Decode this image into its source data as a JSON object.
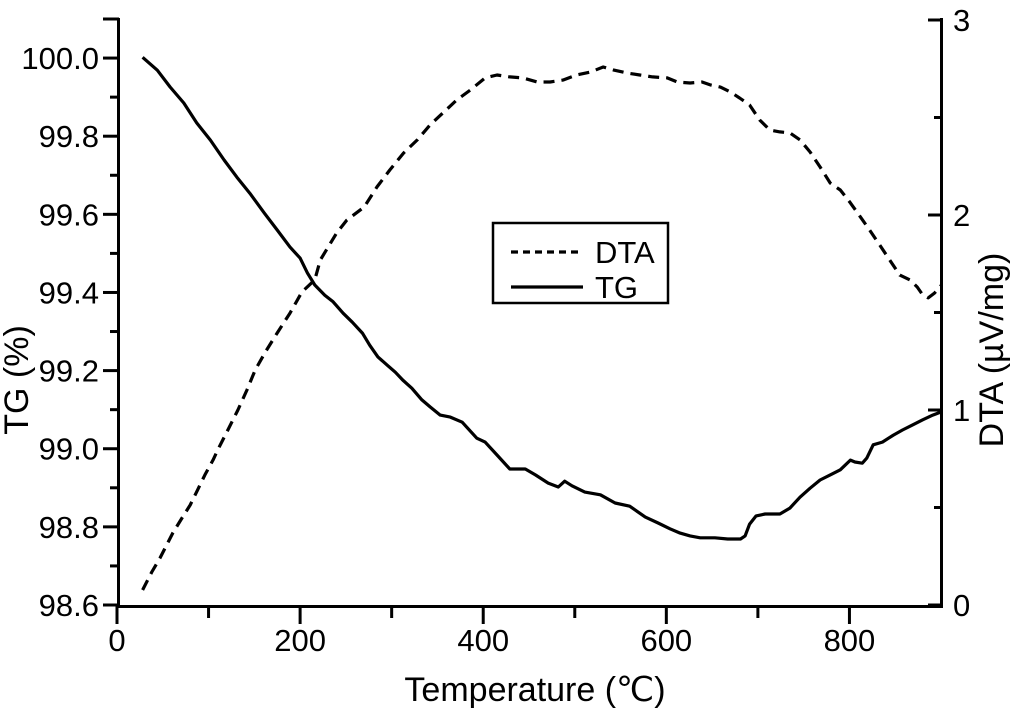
{
  "chart_data": {
    "type": "line",
    "title": "",
    "background_color": "#ffffff",
    "line_color": "#000000",
    "x_axis": {
      "label": "Temperature (℃)",
      "range": [
        0,
        900
      ],
      "major_ticks": [
        {
          "v": 0,
          "t": "0"
        },
        {
          "v": 200,
          "t": "200"
        },
        {
          "v": 400,
          "t": "400"
        },
        {
          "v": 600,
          "t": "600"
        },
        {
          "v": 800,
          "t": "800"
        }
      ],
      "minor_ticks": [
        100,
        300,
        500,
        700
      ]
    },
    "left_axis": {
      "label": "TG (%)",
      "range": [
        98.6,
        100.1
      ],
      "major_ticks": [
        {
          "v": 98.6,
          "t": "98.6"
        },
        {
          "v": 98.8,
          "t": "98.8"
        },
        {
          "v": 99.0,
          "t": "99.0"
        },
        {
          "v": 99.2,
          "t": "99.2"
        },
        {
          "v": 99.4,
          "t": "99.4"
        },
        {
          "v": 99.6,
          "t": "99.6"
        },
        {
          "v": 99.8,
          "t": "99.8"
        },
        {
          "v": 100.0,
          "t": "100.0"
        },
        {
          "v": 100.1,
          "t": ""
        }
      ],
      "minor_ticks": [
        98.7,
        98.9,
        99.1,
        99.3,
        99.5,
        99.7,
        99.9
      ]
    },
    "right_axis": {
      "label": "DTA (µV/mg)",
      "range": [
        0,
        3
      ],
      "major_ticks": [
        {
          "v": 0,
          "t": "0"
        },
        {
          "v": 1,
          "t": "1"
        },
        {
          "v": 2,
          "t": "2"
        },
        {
          "v": 3,
          "t": "3"
        }
      ],
      "minor_ticks": [
        0.5,
        1.5,
        2.5
      ]
    },
    "legend": {
      "entries": [
        {
          "label": "DTA",
          "line_style": "dashed"
        },
        {
          "label": "TG",
          "line_style": "solid"
        }
      ]
    },
    "series": [
      {
        "name": "DTA",
        "axis": "right",
        "line_style": "dashed",
        "color": "#000000",
        "points": [
          [
            28,
            0.077
          ],
          [
            38,
            0.169
          ],
          [
            47,
            0.241
          ],
          [
            61,
            0.369
          ],
          [
            71,
            0.446
          ],
          [
            80,
            0.513
          ],
          [
            88,
            0.59
          ],
          [
            96,
            0.667
          ],
          [
            105,
            0.744
          ],
          [
            110,
            0.795
          ],
          [
            121,
            0.897
          ],
          [
            132,
            1.0
          ],
          [
            142,
            1.103
          ],
          [
            151,
            1.205
          ],
          [
            162,
            1.297
          ],
          [
            175,
            1.395
          ],
          [
            189,
            1.497
          ],
          [
            202,
            1.605
          ],
          [
            216,
            1.667
          ],
          [
            222,
            1.769
          ],
          [
            240,
            1.908
          ],
          [
            251,
            1.974
          ],
          [
            270,
            2.041
          ],
          [
            284,
            2.144
          ],
          [
            298,
            2.231
          ],
          [
            313,
            2.318
          ],
          [
            328,
            2.385
          ],
          [
            342,
            2.462
          ],
          [
            357,
            2.528
          ],
          [
            371,
            2.59
          ],
          [
            386,
            2.641
          ],
          [
            402,
            2.703
          ],
          [
            415,
            2.718
          ],
          [
            429,
            2.708
          ],
          [
            443,
            2.703
          ],
          [
            459,
            2.682
          ],
          [
            473,
            2.682
          ],
          [
            487,
            2.692
          ],
          [
            502,
            2.718
          ],
          [
            517,
            2.733
          ],
          [
            531,
            2.759
          ],
          [
            542,
            2.744
          ],
          [
            557,
            2.728
          ],
          [
            571,
            2.718
          ],
          [
            585,
            2.708
          ],
          [
            601,
            2.703
          ],
          [
            612,
            2.682
          ],
          [
            626,
            2.677
          ],
          [
            639,
            2.682
          ],
          [
            648,
            2.667
          ],
          [
            659,
            2.656
          ],
          [
            670,
            2.631
          ],
          [
            680,
            2.6
          ],
          [
            691,
            2.564
          ],
          [
            702,
            2.487
          ],
          [
            713,
            2.436
          ],
          [
            724,
            2.426
          ],
          [
            735,
            2.421
          ],
          [
            746,
            2.385
          ],
          [
            757,
            2.323
          ],
          [
            768,
            2.246
          ],
          [
            779,
            2.164
          ],
          [
            790,
            2.128
          ],
          [
            801,
            2.062
          ],
          [
            812,
            1.99
          ],
          [
            822,
            1.923
          ],
          [
            833,
            1.846
          ],
          [
            844,
            1.769
          ],
          [
            855,
            1.692
          ],
          [
            866,
            1.667
          ],
          [
            874,
            1.631
          ],
          [
            880,
            1.59
          ],
          [
            886,
            1.575
          ],
          [
            893,
            1.6
          ],
          [
            900,
            1.638
          ]
        ]
      },
      {
        "name": "TG",
        "axis": "left",
        "line_style": "solid",
        "color": "#000000",
        "points": [
          [
            28,
            100.002
          ],
          [
            44,
            99.969
          ],
          [
            58,
            99.926
          ],
          [
            73,
            99.885
          ],
          [
            87,
            99.834
          ],
          [
            102,
            99.79
          ],
          [
            117,
            99.739
          ],
          [
            131,
            99.695
          ],
          [
            145,
            99.654
          ],
          [
            161,
            99.603
          ],
          [
            175,
            99.56
          ],
          [
            189,
            99.516
          ],
          [
            200,
            99.488
          ],
          [
            208,
            99.45
          ],
          [
            216,
            99.419
          ],
          [
            227,
            99.393
          ],
          [
            236,
            99.376
          ],
          [
            247,
            99.347
          ],
          [
            257,
            99.324
          ],
          [
            268,
            99.296
          ],
          [
            276,
            99.265
          ],
          [
            285,
            99.235
          ],
          [
            295,
            99.214
          ],
          [
            304,
            99.196
          ],
          [
            312,
            99.176
          ],
          [
            322,
            99.155
          ],
          [
            333,
            99.125
          ],
          [
            342,
            99.107
          ],
          [
            353,
            99.086
          ],
          [
            364,
            99.081
          ],
          [
            377,
            99.068
          ],
          [
            393,
            99.027
          ],
          [
            402,
            99.017
          ],
          [
            415,
            98.984
          ],
          [
            429,
            98.948
          ],
          [
            446,
            98.948
          ],
          [
            457,
            98.933
          ],
          [
            471,
            98.912
          ],
          [
            482,
            98.902
          ],
          [
            489,
            98.917
          ],
          [
            497,
            98.905
          ],
          [
            511,
            98.889
          ],
          [
            528,
            98.882
          ],
          [
            544,
            98.861
          ],
          [
            560,
            98.853
          ],
          [
            577,
            98.825
          ],
          [
            591,
            98.81
          ],
          [
            604,
            98.795
          ],
          [
            615,
            98.784
          ],
          [
            626,
            98.777
          ],
          [
            637,
            98.772
          ],
          [
            653,
            98.772
          ],
          [
            667,
            98.769
          ],
          [
            681,
            98.769
          ],
          [
            686,
            98.777
          ],
          [
            691,
            98.807
          ],
          [
            698,
            98.828
          ],
          [
            708,
            98.833
          ],
          [
            724,
            98.833
          ],
          [
            735,
            98.848
          ],
          [
            746,
            98.876
          ],
          [
            757,
            98.899
          ],
          [
            768,
            98.92
          ],
          [
            779,
            98.933
          ],
          [
            790,
            98.946
          ],
          [
            801,
            98.971
          ],
          [
            806,
            98.966
          ],
          [
            814,
            98.963
          ],
          [
            819,
            98.976
          ],
          [
            826,
            99.01
          ],
          [
            836,
            99.017
          ],
          [
            848,
            99.035
          ],
          [
            858,
            99.048
          ],
          [
            869,
            99.061
          ],
          [
            880,
            99.074
          ],
          [
            891,
            99.086
          ],
          [
            900,
            99.094
          ]
        ]
      }
    ]
  }
}
